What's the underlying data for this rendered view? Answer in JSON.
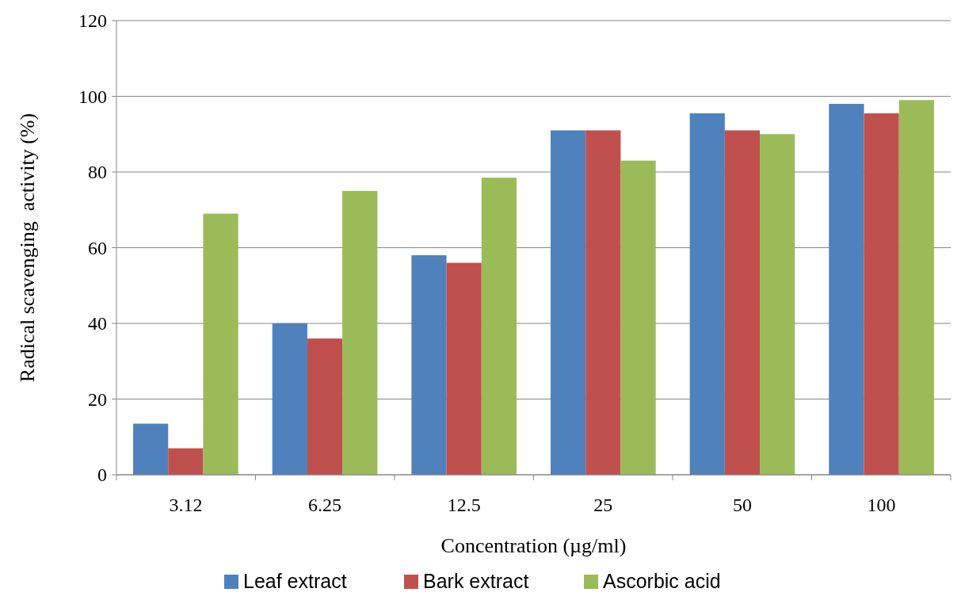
{
  "chart_data": {
    "type": "bar",
    "xlabel": "Concentration (µg/ml)",
    "ylabel": "Radical scavenging  activity (%)",
    "categories": [
      "3.12",
      "6.25",
      "12.5",
      "25",
      "50",
      "100"
    ],
    "series": [
      {
        "name": "Leaf extract",
        "color": "#4f81bd",
        "values": [
          13.5,
          40,
          58,
          91,
          95.5,
          98
        ]
      },
      {
        "name": "Bark extract",
        "color": "#c0504d",
        "values": [
          7,
          36,
          56,
          91,
          91,
          95.5
        ]
      },
      {
        "name": "Ascorbic acid",
        "color": "#9bbb59",
        "values": [
          69,
          75,
          78.5,
          83,
          90,
          99
        ]
      }
    ],
    "ylim": [
      0,
      120
    ],
    "yticks": [
      0,
      20,
      40,
      60,
      80,
      100,
      120
    ],
    "grid": "y",
    "legend": "bottom"
  }
}
